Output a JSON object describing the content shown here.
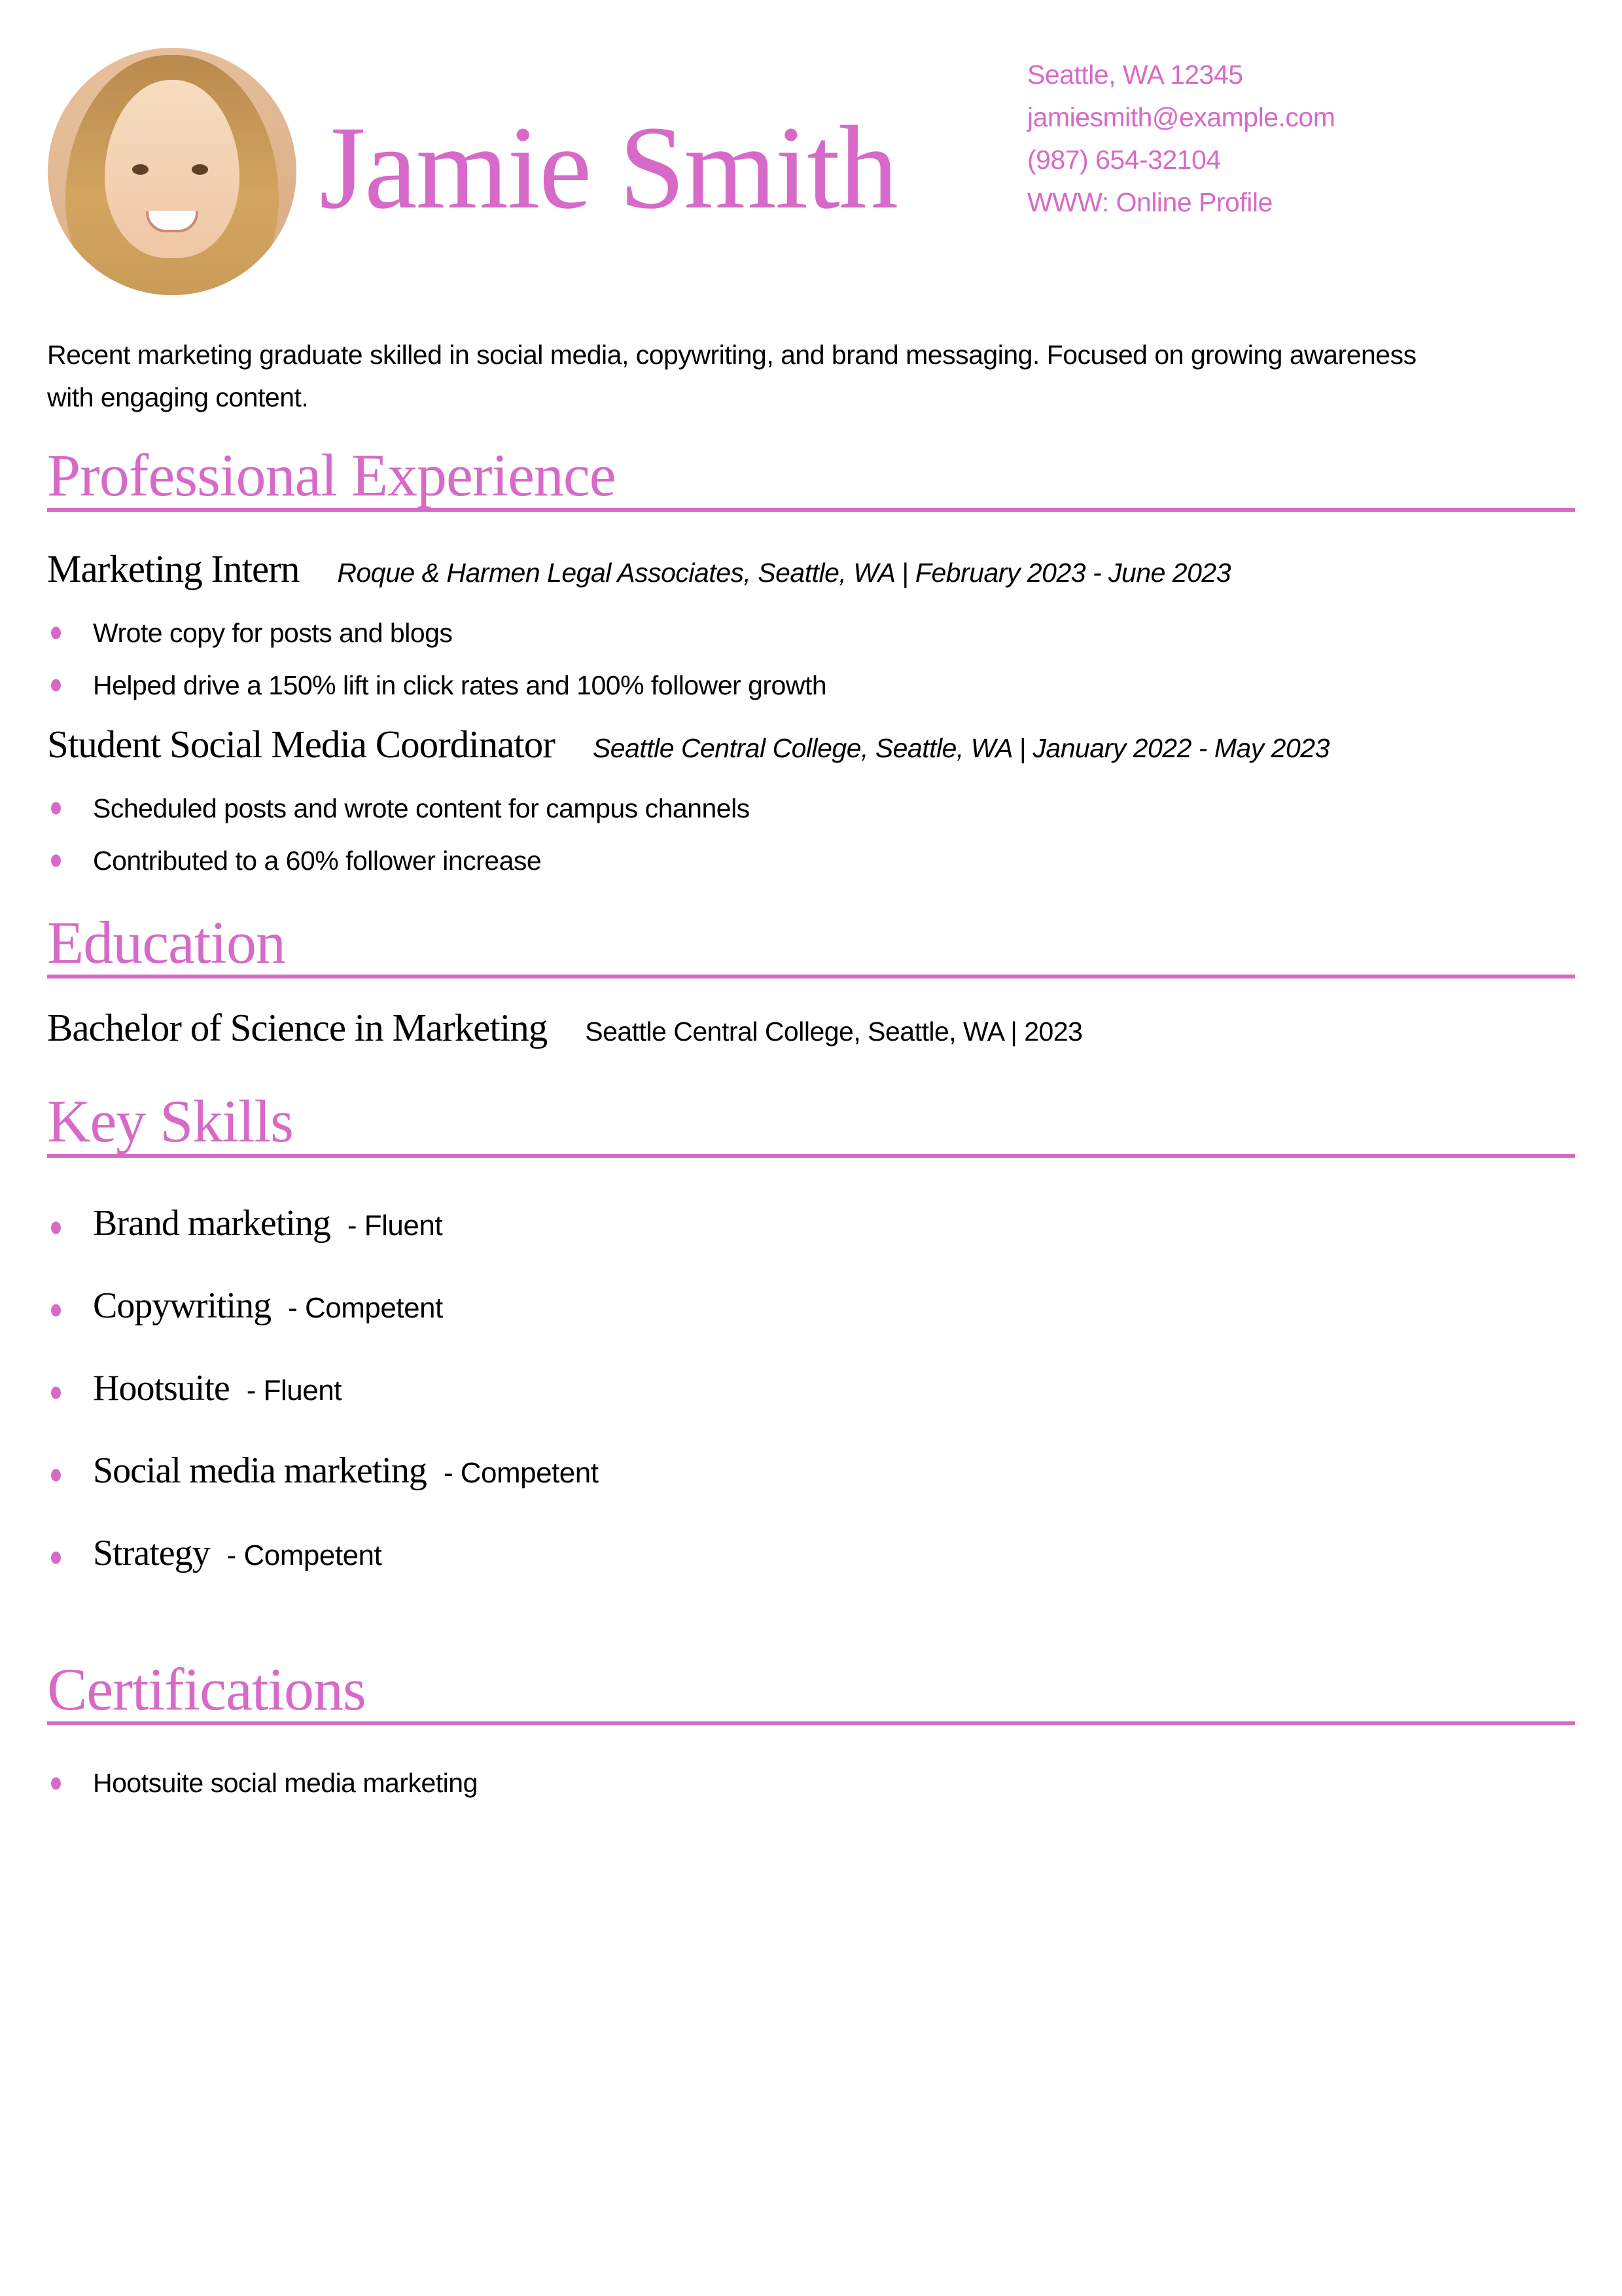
{
  "page": {
    "background": "#ffffff",
    "accent": "#d76ac8"
  },
  "header": {
    "name": "Jamie Smith",
    "photo": "circular-portrait-of-smiling-woman",
    "contact": {
      "address": "Seattle, WA 12345",
      "email": "jamiesmith@example.com",
      "phone": "(987) 654-32104",
      "website": "WWW: Online Profile"
    }
  },
  "summary": "Recent marketing graduate skilled in social media, copywriting, and brand messaging. Focused on growing awareness with engaging content.",
  "sections": {
    "experience": {
      "title": "Professional Experience",
      "jobs": [
        {
          "title": "Marketing Intern",
          "details": "Roque & Harmen Legal Associates, Seattle, WA | February 2023 - June 2023",
          "bullets": [
            "Wrote copy for posts and blogs",
            "Helped drive a 150% lift in click rates and 100% follower growth"
          ]
        },
        {
          "title": "Student Social Media Coordinator",
          "details": "Seattle Central College, Seattle, WA | January 2022 - May 2023",
          "bullets": [
            "Scheduled posts and wrote content for campus channels",
            "Contributed to a 60% follower increase"
          ]
        }
      ]
    },
    "education": {
      "title": "Education",
      "degree": "Bachelor of Science in Marketing",
      "details": "Seattle Central College, Seattle, WA | 2023"
    },
    "skills": {
      "title": "Key Skills",
      "items": [
        {
          "name": "Brand marketing",
          "level": "- Fluent"
        },
        {
          "name": "Copywriting",
          "level": "- Competent"
        },
        {
          "name": "Hootsuite",
          "level": "- Fluent"
        },
        {
          "name": "Social media marketing",
          "level": "- Competent"
        },
        {
          "name": "Strategy",
          "level": "- Competent"
        }
      ]
    },
    "certifications": {
      "title": "Certifications",
      "items": [
        "Hootsuite social media marketing"
      ]
    }
  }
}
